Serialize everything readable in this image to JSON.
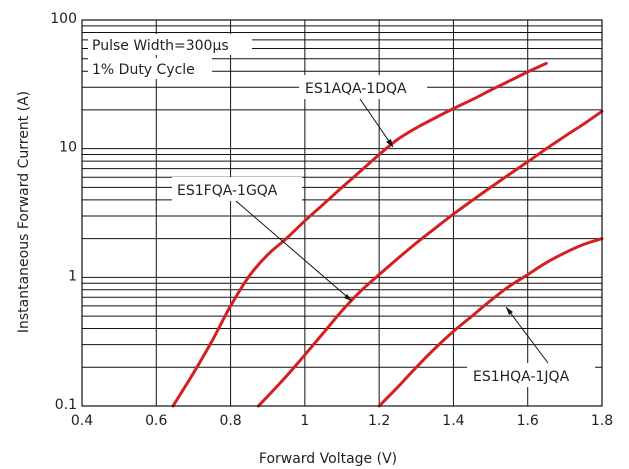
{
  "chart_data": {
    "type": "line",
    "title": "",
    "xlabel": "Forward Voltage (V)",
    "ylabel": "Instantaneous Forward Current (A)",
    "xlim": [
      0.4,
      1.8
    ],
    "ylim": [
      0.1,
      100
    ],
    "y_scale": "log",
    "grid": true,
    "x_ticks": [
      0.4,
      0.6,
      0.8,
      1.0,
      1.2,
      1.4,
      1.6,
      1.8
    ],
    "x_tick_labels": [
      "0.4",
      "0.6",
      "0.8",
      "1",
      "1.2",
      "1.4",
      "1.6",
      "1.8"
    ],
    "y_ticks": [
      0.1,
      1,
      10,
      100
    ],
    "y_tick_labels": [
      "0.1",
      "1",
      "10",
      "100"
    ],
    "annotations": [
      "Pulse Width=300µs",
      "1% Duty Cycle"
    ],
    "series_color": "#d42020",
    "series": [
      {
        "name": "ES1AQA-1DQA",
        "x": [
          0.645,
          0.7,
          0.75,
          0.8,
          0.85,
          0.9,
          0.95,
          1.0,
          1.05,
          1.1,
          1.15,
          1.2,
          1.25,
          1.3,
          1.35,
          1.4,
          1.45,
          1.5,
          1.55,
          1.6,
          1.65
        ],
        "y": [
          0.1,
          0.18,
          0.32,
          0.6,
          1.02,
          1.5,
          2.0,
          2.75,
          3.7,
          5.0,
          6.7,
          9.0,
          11.8,
          14.5,
          17.3,
          20.5,
          24.0,
          28.5,
          33.5,
          39.5,
          46.0
        ]
      },
      {
        "name": "ES1FQA-1GQA",
        "x": [
          0.875,
          0.95,
          1.0,
          1.05,
          1.1,
          1.15,
          1.2,
          1.25,
          1.3,
          1.35,
          1.4,
          1.45,
          1.5,
          1.55,
          1.6,
          1.65,
          1.7,
          1.75,
          1.8
        ],
        "y": [
          0.1,
          0.17,
          0.25,
          0.37,
          0.55,
          0.78,
          1.05,
          1.4,
          1.85,
          2.4,
          3.1,
          3.95,
          5.0,
          6.3,
          7.9,
          10.0,
          12.5,
          15.5,
          19.5
        ]
      },
      {
        "name": "ES1HQA-1JQA",
        "x": [
          1.2,
          1.25,
          1.3,
          1.35,
          1.4,
          1.45,
          1.5,
          1.55,
          1.6,
          1.65,
          1.7,
          1.75,
          1.8
        ],
        "y": [
          0.1,
          0.14,
          0.2,
          0.28,
          0.38,
          0.5,
          0.66,
          0.85,
          1.05,
          1.3,
          1.55,
          1.8,
          2.0
        ]
      }
    ]
  }
}
